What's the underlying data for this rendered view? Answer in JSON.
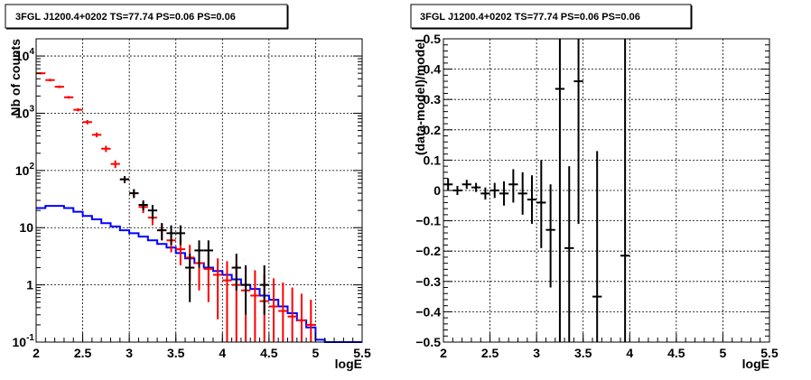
{
  "chart_data": [
    {
      "type": "step-histogram-with-errorbars",
      "title": "3FGL J1200.4+0202 TS=77.74 PS=0.06 PS=0.06",
      "xlabel": "logE",
      "ylabel": "Nb of counts",
      "xlim": [
        2,
        5.5
      ],
      "ylim": [
        0.1,
        20000
      ],
      "yscale": "log",
      "grid": true,
      "xticks": [
        "2",
        "2.5",
        "3",
        "3.5",
        "4",
        "4.5",
        "5",
        "5.5"
      ],
      "yticks": [
        {
          "v": 0.1,
          "t": "10",
          "sup": "-1"
        },
        {
          "v": 1,
          "t": "1",
          "sup": ""
        },
        {
          "v": 10,
          "t": "10",
          "sup": ""
        },
        {
          "v": 100,
          "t": "10",
          "sup": "2"
        },
        {
          "v": 1000,
          "t": "10",
          "sup": "3"
        },
        {
          "v": 10000,
          "t": "10",
          "sup": "4"
        }
      ],
      "bin_width": 0.1,
      "series": [
        {
          "color": "#0000ff",
          "style": "step",
          "x": [
            2.05,
            2.15,
            2.25,
            2.35,
            2.45,
            2.55,
            2.65,
            2.75,
            2.85,
            2.95,
            3.05,
            3.15,
            3.25,
            3.35,
            3.45,
            3.55,
            3.65,
            3.75,
            3.85,
            3.95,
            4.05,
            4.15,
            4.25,
            4.35,
            4.45,
            4.55,
            4.65,
            4.75,
            4.85,
            4.95,
            5.05,
            5.15,
            5.25,
            5.35,
            5.45
          ],
          "y": [
            22,
            24,
            24,
            22,
            19,
            16,
            14,
            12,
            10.5,
            9,
            8,
            7,
            6,
            5.2,
            4.5,
            3.6,
            2.9,
            2.4,
            2.0,
            1.75,
            1.5,
            1.25,
            1.0,
            0.85,
            0.65,
            0.55,
            0.42,
            0.32,
            0.24,
            0.18,
            0.11,
            0.1,
            0.1,
            0.1,
            0.1
          ]
        },
        {
          "color": "#ff0000",
          "style": "errorbars",
          "x": [
            2.05,
            2.15,
            2.25,
            2.35,
            2.45,
            2.55,
            2.65,
            2.75,
            2.85,
            2.95,
            3.05,
            3.15,
            3.25,
            3.35,
            3.45,
            3.55,
            3.65,
            3.75,
            3.85,
            3.95,
            4.05,
            4.15,
            4.25,
            4.35,
            4.45,
            4.55,
            4.65,
            4.75,
            4.85,
            4.95
          ],
          "y": [
            5000,
            3800,
            2900,
            1900,
            1150,
            700,
            420,
            240,
            130,
            70,
            40,
            23,
            15,
            9,
            6,
            4.2,
            3.0,
            2.4,
            1.9,
            1.5,
            1.2,
            1.0,
            0.8,
            0.65,
            0.52,
            0.42,
            0.35,
            0.28,
            0.24,
            0.2
          ],
          "ylow": [
            4800,
            3600,
            2750,
            1800,
            1080,
            640,
            380,
            210,
            110,
            60,
            33,
            18,
            11,
            6,
            3.7,
            2.2,
            1.2,
            0.8,
            0.5,
            0.25,
            0.1,
            0.1,
            0.1,
            0.1,
            0.1,
            0.1,
            0.1,
            0.1,
            0.1,
            0.1
          ],
          "yhigh": [
            5200,
            4000,
            3050,
            2000,
            1220,
            760,
            460,
            270,
            150,
            80,
            47,
            28,
            19,
            12,
            8.5,
            6.5,
            5.0,
            4.3,
            3.5,
            2.9,
            2.6,
            2.3,
            2.0,
            1.8,
            1.5,
            1.3,
            1.1,
            0.9,
            0.7,
            0.55
          ]
        },
        {
          "color": "#000000",
          "style": "errorbars",
          "x": [
            2.95,
            3.05,
            3.15,
            3.25,
            3.35,
            3.45,
            3.55,
            3.65,
            3.75,
            3.85,
            4.15,
            4.25,
            4.45
          ],
          "y": [
            70,
            40,
            25,
            20,
            9,
            8,
            8,
            2,
            4,
            4,
            2,
            1,
            1
          ],
          "ylow": [
            60,
            33,
            20,
            14,
            6,
            5,
            5,
            0.5,
            2,
            2,
            0.8,
            0.3,
            0.3
          ],
          "yhigh": [
            80,
            47,
            30,
            25,
            12,
            11,
            11,
            3.5,
            6,
            6,
            3.5,
            2.2,
            2.2
          ]
        }
      ]
    },
    {
      "type": "errorbars",
      "title": "3FGL J1200.4+0202 TS=77.74 PS=0.06 PS=0.06",
      "xlabel": "logE",
      "ylabel": "(data-model)/model",
      "xlim": [
        2,
        5.5
      ],
      "ylim": [
        -0.5,
        0.5
      ],
      "grid": true,
      "xticks": [
        "2",
        "2.5",
        "3",
        "3.5",
        "4",
        "4.5",
        "5",
        "5.5"
      ],
      "yticks": [
        "−0.5",
        "−0.4",
        "−0.3",
        "−0.2",
        "−0.1",
        "0",
        "0.1",
        "0.2",
        "0.3",
        "0.4",
        "0.5"
      ],
      "bin_width": 0.1,
      "series": [
        {
          "color": "#000000",
          "x": [
            2.05,
            2.15,
            2.25,
            2.35,
            2.45,
            2.55,
            2.65,
            2.75,
            2.85,
            2.95,
            3.05,
            3.15,
            3.25,
            3.35,
            3.45,
            3.65,
            3.95
          ],
          "y": [
            0.02,
            0.0,
            0.02,
            0.01,
            -0.01,
            0.0,
            -0.01,
            0.02,
            -0.01,
            -0.03,
            -0.04,
            -0.13,
            0.335,
            -0.19,
            0.36,
            -0.35,
            -0.215
          ],
          "ylow": [
            0.0,
            -0.015,
            0.005,
            -0.005,
            -0.03,
            -0.025,
            -0.05,
            -0.04,
            -0.08,
            -0.11,
            -0.19,
            -0.32,
            -0.5,
            -0.5,
            -0.11,
            -0.5,
            -0.5
          ],
          "yhigh": [
            0.04,
            0.015,
            0.035,
            0.025,
            0.01,
            0.025,
            0.03,
            0.07,
            0.06,
            0.05,
            0.1,
            0.02,
            0.5,
            0.08,
            0.5,
            0.13,
            0.5
          ]
        }
      ]
    }
  ]
}
